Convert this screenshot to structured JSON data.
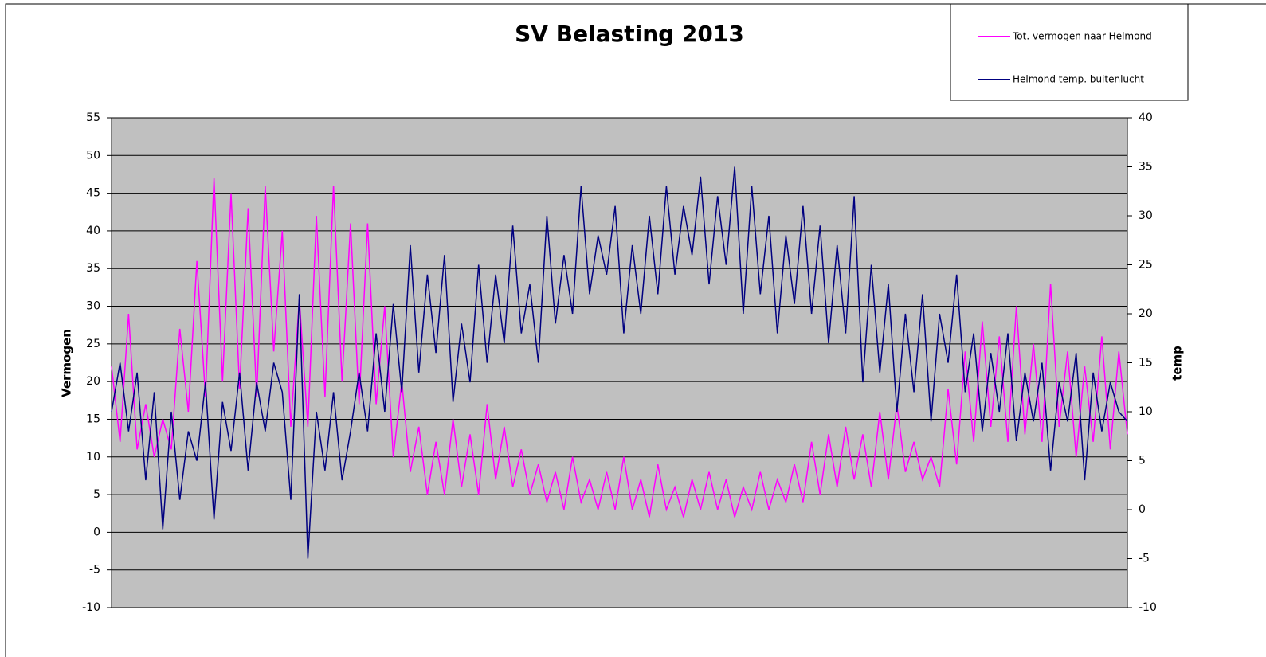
{
  "chart_data": {
    "type": "line",
    "title": "SV Belasting 2013",
    "ylabel": "Vermogen",
    "y2label": "temp",
    "ylim": [
      -10,
      55
    ],
    "yticks": [
      -10,
      -5,
      0,
      5,
      10,
      15,
      20,
      25,
      30,
      35,
      40,
      45,
      50,
      55
    ],
    "y2lim": [
      -10,
      40
    ],
    "y2ticks": [
      -10,
      -5,
      0,
      5,
      10,
      15,
      20,
      25,
      30,
      35,
      40
    ],
    "grid": true,
    "legend": "top-right",
    "series": [
      {
        "name": "Tot. vermogen naar Helmond",
        "color": "#ff00ff",
        "axis": "y",
        "values": [
          22,
          12,
          29,
          11,
          17,
          10,
          15,
          11,
          27,
          16,
          36,
          18,
          47,
          20,
          45,
          19,
          43,
          18,
          46,
          24,
          40,
          14,
          31,
          14,
          42,
          18,
          46,
          20,
          41,
          17,
          41,
          17,
          30,
          10,
          20,
          8,
          14,
          5,
          12,
          5,
          15,
          6,
          13,
          5,
          17,
          7,
          14,
          6,
          11,
          5,
          9,
          4,
          8,
          3,
          10,
          4,
          7,
          3,
          8,
          3,
          10,
          3,
          7,
          2,
          9,
          3,
          6,
          2,
          7,
          3,
          8,
          3,
          7,
          2,
          6,
          3,
          8,
          3,
          7,
          4,
          9,
          4,
          12,
          5,
          13,
          6,
          14,
          7,
          13,
          6,
          16,
          7,
          17,
          8,
          12,
          7,
          10,
          6,
          19,
          9,
          24,
          12,
          28,
          14,
          26,
          12,
          30,
          13,
          25,
          12,
          33,
          14,
          24,
          10,
          22,
          12,
          26,
          11,
          24,
          13
        ]
      },
      {
        "name": "Helmond temp. buitenlucht",
        "color": "#000080",
        "axis": "y2",
        "values": [
          10,
          15,
          8,
          14,
          3,
          12,
          -2,
          10,
          1,
          8,
          5,
          13,
          -1,
          11,
          6,
          14,
          4,
          13,
          8,
          15,
          12,
          1,
          22,
          -5,
          10,
          4,
          12,
          3,
          8,
          14,
          8,
          18,
          10,
          21,
          12,
          27,
          14,
          24,
          16,
          26,
          11,
          19,
          13,
          25,
          15,
          24,
          17,
          29,
          18,
          23,
          15,
          30,
          19,
          26,
          20,
          33,
          22,
          28,
          24,
          31,
          18,
          27,
          20,
          30,
          22,
          33,
          24,
          31,
          26,
          34,
          23,
          32,
          25,
          35,
          20,
          33,
          22,
          30,
          18,
          28,
          21,
          31,
          20,
          29,
          17,
          27,
          18,
          32,
          13,
          25,
          14,
          23,
          10,
          20,
          12,
          22,
          9,
          20,
          15,
          24,
          12,
          18,
          8,
          16,
          10,
          18,
          7,
          14,
          9,
          15,
          4,
          13,
          9,
          16,
          3,
          14,
          8,
          13,
          10,
          9
        ]
      }
    ]
  }
}
